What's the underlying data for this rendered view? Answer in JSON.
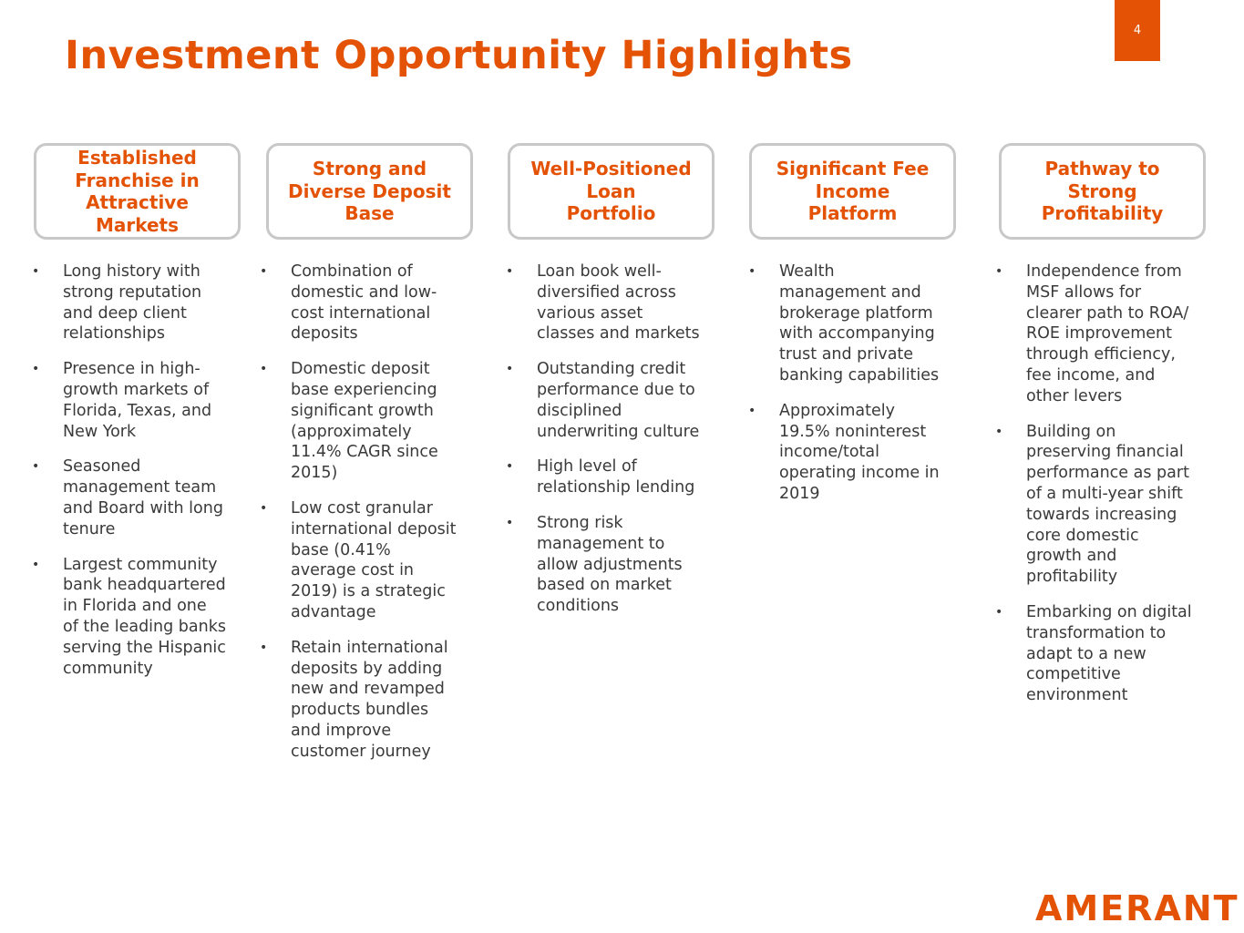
{
  "title": "Investment Opportunity Highlights",
  "page_number": "4",
  "logo": "AMERANT",
  "accent_color": "#E35205",
  "columns": [
    {
      "header": "Established\nFranchise in\nAttractive\nMarkets",
      "bullets": [
        "Long history with\nstrong reputation\nand deep client\nrelationships",
        "Presence in high-\ngrowth markets of\nFlorida, Texas, and\nNew York",
        "Seasoned\nmanagement team\nand Board with long\ntenure",
        "Largest community\nbank headquartered\nin Florida and one\nof the leading banks\nserving the Hispanic\ncommunity"
      ]
    },
    {
      "header": "Strong and\nDiverse Deposit\nBase",
      "bullets": [
        "Combination of\ndomestic and low-\ncost international\ndeposits",
        "Domestic deposit\nbase experiencing\nsignificant growth\n(approximately\n11.4% CAGR since\n2015)",
        "Low cost granular\ninternational deposit\nbase (0.41%\naverage cost in\n2019) is a strategic\nadvantage",
        "Retain international\ndeposits by adding\nnew and revamped\nproducts bundles\nand improve\ncustomer journey"
      ]
    },
    {
      "header": "Well-Positioned\nLoan\nPortfolio",
      "bullets": [
        "Loan book well-\ndiversified across\nvarious asset\nclasses and markets",
        "Outstanding credit\nperformance due to\ndisciplined\nunderwriting culture",
        "High level of\nrelationship lending",
        "Strong risk\nmanagement to\nallow adjustments\nbased on market\nconditions"
      ]
    },
    {
      "header": "Significant Fee\nIncome\nPlatform",
      "bullets": [
        "Wealth\nmanagement and\nbrokerage platform\nwith accompanying\ntrust and private\nbanking capabilities",
        "Approximately\n19.5% noninterest\nincome/total\noperating income in\n2019"
      ]
    },
    {
      "header": "Pathway to\nStrong\nProfitability",
      "bullets": [
        "Independence from\nMSF allows for\nclearer path to ROA/\nROE improvement\nthrough efficiency,\nfee income, and\nother levers",
        "Building on\npreserving financial\nperformance as part\nof a multi-year shift\ntowards increasing\ncore domestic\ngrowth and\nprofitability",
        "Embarking on digital\ntransformation to\nadapt to a new\ncompetitive\nenvironment"
      ]
    }
  ]
}
